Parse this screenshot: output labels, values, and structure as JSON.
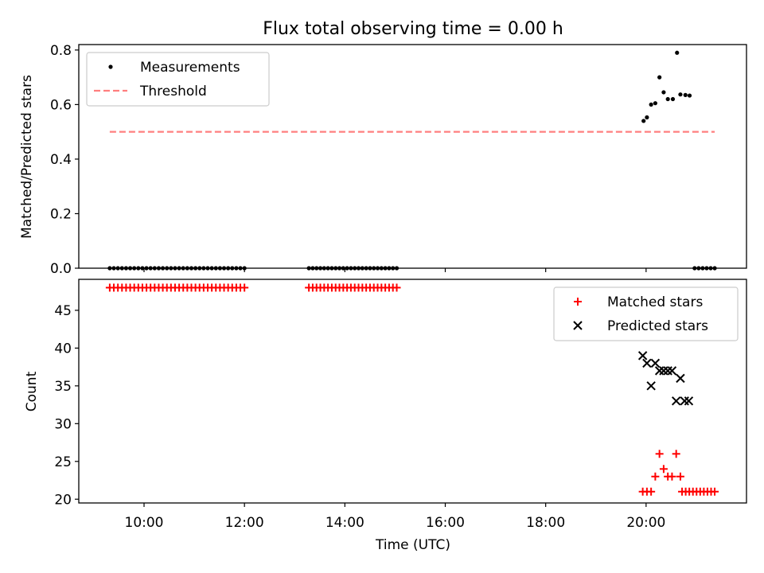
{
  "chart_data": [
    {
      "type": "scatter",
      "title": "Flux total observing time = 0.00 h",
      "xlabel": "",
      "ylabel": "Matched/Predicted stars",
      "xlim_hours": [
        8.7,
        22.0
      ],
      "ylim": [
        0,
        0.82
      ],
      "x_ticks": [
        "10:00",
        "12:00",
        "14:00",
        "16:00",
        "18:00",
        "20:00"
      ],
      "y_ticks": [
        "0.0",
        "0.2",
        "0.4",
        "0.6",
        "0.8"
      ],
      "x_tick_labels_visible": false,
      "legend_placement": "upper-left",
      "series": [
        {
          "name": "Measurements",
          "marker": "dot",
          "color": "#000000",
          "segments": [
            {
              "start": "9:19",
              "end": "12:00",
              "count": 34,
              "y": 0.0
            },
            {
              "start": "13:17",
              "end": "15:02",
              "count": 24,
              "y": 0.0
            },
            {
              "start": "20:58",
              "end": "21:22",
              "count": 6,
              "y": 0.0
            }
          ],
          "points": [
            {
              "x": "19:57",
              "y": 0.54
            },
            {
              "x": "20:01",
              "y": 0.553
            },
            {
              "x": "20:06",
              "y": 0.6
            },
            {
              "x": "20:11",
              "y": 0.605
            },
            {
              "x": "20:16",
              "y": 0.7
            },
            {
              "x": "20:21",
              "y": 0.645
            },
            {
              "x": "20:26",
              "y": 0.62
            },
            {
              "x": "20:32",
              "y": 0.62
            },
            {
              "x": "20:37",
              "y": 0.79
            },
            {
              "x": "20:41",
              "y": 0.637
            },
            {
              "x": "20:47",
              "y": 0.635
            },
            {
              "x": "20:52",
              "y": 0.633
            }
          ]
        },
        {
          "name": "Threshold",
          "marker": "dashed-line",
          "color": "#ff7f7f",
          "x_start": "9:19",
          "x_end": "21:22",
          "y": 0.5
        }
      ]
    },
    {
      "type": "scatter",
      "title": "",
      "xlabel": "Time (UTC)",
      "ylabel": "Count",
      "xlim_hours": [
        8.7,
        22.0
      ],
      "ylim": [
        19.5,
        49.1
      ],
      "x_ticks": [
        "10:00",
        "12:00",
        "14:00",
        "16:00",
        "18:00",
        "20:00"
      ],
      "y_ticks": [
        "20",
        "25",
        "30",
        "35",
        "40",
        "45"
      ],
      "legend_placement": "upper-right",
      "series": [
        {
          "name": "Matched stars",
          "marker": "plus",
          "color": "#ff0000",
          "segments": [
            {
              "start": "9:19",
              "end": "12:00",
              "count": 34,
              "y": 48
            },
            {
              "start": "13:17",
              "end": "15:02",
              "count": 24,
              "y": 48
            },
            {
              "start": "20:43",
              "end": "21:22",
              "count": 10,
              "y": 21
            }
          ],
          "points": [
            {
              "x": "19:56",
              "y": 21
            },
            {
              "x": "20:01",
              "y": 21
            },
            {
              "x": "20:06",
              "y": 21
            },
            {
              "x": "20:11",
              "y": 23
            },
            {
              "x": "20:16",
              "y": 26
            },
            {
              "x": "20:21",
              "y": 24
            },
            {
              "x": "20:26",
              "y": 23
            },
            {
              "x": "20:31",
              "y": 23
            },
            {
              "x": "20:36",
              "y": 26
            },
            {
              "x": "20:41",
              "y": 23
            }
          ]
        },
        {
          "name": "Predicted stars",
          "marker": "x",
          "color": "#000000",
          "points": [
            {
              "x": "19:56",
              "y": 39
            },
            {
              "x": "20:01",
              "y": 38
            },
            {
              "x": "20:06",
              "y": 35
            },
            {
              "x": "20:11",
              "y": 38
            },
            {
              "x": "20:16",
              "y": 37
            },
            {
              "x": "20:21",
              "y": 37
            },
            {
              "x": "20:26",
              "y": 37
            },
            {
              "x": "20:31",
              "y": 37
            },
            {
              "x": "20:36",
              "y": 33
            },
            {
              "x": "20:41",
              "y": 36
            },
            {
              "x": "20:46",
              "y": 33
            },
            {
              "x": "20:51",
              "y": 33
            }
          ]
        }
      ]
    }
  ]
}
